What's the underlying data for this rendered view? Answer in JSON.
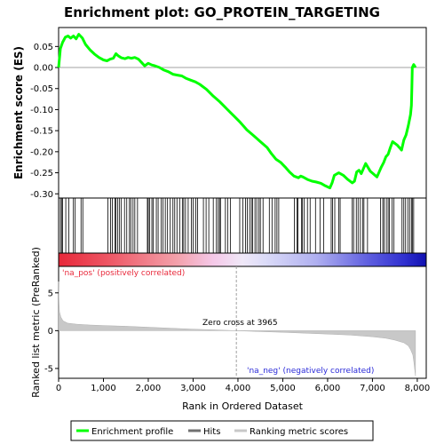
{
  "chart_data": {
    "type": "line",
    "title": "Enrichment plot: GO_PROTEIN_TARGETING",
    "top_panel": {
      "ylabel": "Enrichment score (ES)",
      "ylim": [
        -0.31,
        0.095
      ],
      "yticks": [
        "0.05",
        "0.00",
        "-0.05",
        "-0.10",
        "-0.15",
        "-0.20",
        "-0.25",
        "-0.30"
      ],
      "ytick_values": [
        0.05,
        0.0,
        -0.05,
        -0.1,
        -0.15,
        -0.2,
        -0.25,
        -0.3
      ],
      "grid": false,
      "series": [
        {
          "name": "Enrichment profile",
          "color": "#00ff00",
          "x": [
            0,
            40,
            90,
            150,
            210,
            270,
            330,
            390,
            450,
            530,
            600,
            700,
            800,
            900,
            1000,
            1080,
            1150,
            1220,
            1280,
            1330,
            1400,
            1480,
            1550,
            1620,
            1700,
            1780,
            1850,
            1920,
            2000,
            2080,
            2150,
            2250,
            2350,
            2450,
            2550,
            2650,
            2750,
            2850,
            2950,
            3050,
            3150,
            3300,
            3450,
            3600,
            3750,
            3900,
            4050,
            4200,
            4350,
            4500,
            4650,
            4750,
            4850,
            4950,
            5050,
            5150,
            5250,
            5350,
            5400,
            5450,
            5550,
            5650,
            5750,
            5850,
            5950,
            6050,
            6100,
            6150,
            6250,
            6350,
            6450,
            6550,
            6600,
            6650,
            6700,
            6750,
            6800,
            6850,
            6950,
            7100,
            7200,
            7250,
            7300,
            7350,
            7400,
            7450,
            7550,
            7650,
            7700,
            7750,
            7800,
            7850,
            7870,
            7880,
            7890,
            7920,
            7960
          ],
          "y": [
            0.0,
            0.045,
            0.06,
            0.072,
            0.075,
            0.07,
            0.075,
            0.068,
            0.079,
            0.07,
            0.055,
            0.042,
            0.032,
            0.024,
            0.018,
            0.016,
            0.02,
            0.022,
            0.033,
            0.028,
            0.023,
            0.021,
            0.024,
            0.022,
            0.024,
            0.02,
            0.012,
            0.004,
            0.01,
            0.006,
            0.004,
            0.0,
            -0.006,
            -0.01,
            -0.016,
            -0.018,
            -0.02,
            -0.026,
            -0.03,
            -0.034,
            -0.04,
            -0.052,
            -0.068,
            -0.082,
            -0.098,
            -0.114,
            -0.13,
            -0.148,
            -0.162,
            -0.176,
            -0.19,
            -0.205,
            -0.218,
            -0.225,
            -0.236,
            -0.248,
            -0.258,
            -0.262,
            -0.258,
            -0.26,
            -0.266,
            -0.27,
            -0.272,
            -0.275,
            -0.281,
            -0.286,
            -0.274,
            -0.256,
            -0.25,
            -0.256,
            -0.266,
            -0.274,
            -0.27,
            -0.248,
            -0.244,
            -0.252,
            -0.24,
            -0.228,
            -0.246,
            -0.26,
            -0.236,
            -0.226,
            -0.212,
            -0.206,
            -0.19,
            -0.176,
            -0.184,
            -0.196,
            -0.172,
            -0.16,
            -0.138,
            -0.112,
            -0.09,
            -0.05,
            0.0,
            0.007,
            0.0
          ]
        }
      ],
      "hits": [
        40,
        65,
        90,
        160,
        230,
        330,
        370,
        500,
        540,
        1100,
        1160,
        1200,
        1260,
        1280,
        1320,
        1360,
        1400,
        1470,
        1520,
        1580,
        1610,
        1660,
        1700,
        1760,
        1980,
        2000,
        2030,
        2080,
        2110,
        2180,
        2220,
        2290,
        2330,
        2380,
        2430,
        2490,
        2550,
        2590,
        2640,
        2700,
        2760,
        2790,
        2830,
        2890,
        2960,
        3000,
        3060,
        3100,
        3230,
        3290,
        3350,
        3450,
        3520,
        3560,
        3590,
        3610,
        3720,
        3770,
        3830,
        4040,
        4110,
        4170,
        4210,
        4260,
        4300,
        4330,
        4380,
        4420,
        4470,
        4500,
        4560,
        4700,
        4760,
        4830,
        4870,
        4910,
        5260,
        5320,
        5340,
        5420,
        5440,
        5480,
        5550,
        5610,
        5730,
        5830,
        5910,
        6080,
        6110,
        6160,
        6250,
        6280,
        6550,
        6580,
        6640,
        6680,
        6730,
        6780,
        6810,
        6890,
        7180,
        7230,
        7260,
        7310,
        7350,
        7380,
        7440,
        7480,
        7660,
        7700,
        7740,
        7790,
        7830,
        7870,
        7890,
        7920
      ]
    },
    "middle_panel": {
      "pos_label": "'na_pos' (positively correlated)",
      "neg_label": "'na_neg' (negatively correlated)",
      "pos_color": "#e8283a",
      "neg_color": "#2a2ad8"
    },
    "bottom_panel": {
      "ylabel": "Ranked list metric (PreRanked)",
      "xlabel": "Rank in Ordered Dataset",
      "ylim": [
        -6.3,
        8.5
      ],
      "yticks": [
        "5",
        "0",
        "-5"
      ],
      "ytick_values": [
        5,
        0,
        -5
      ],
      "xlim": [
        0,
        8200
      ],
      "xticks": [
        "0",
        "1,000",
        "2,000",
        "3,000",
        "4,000",
        "5,000",
        "6,000",
        "7,000",
        "8,000"
      ],
      "xtick_values": [
        0,
        1000,
        2000,
        3000,
        4000,
        5000,
        6000,
        7000,
        8000
      ],
      "zero_cross_label": "Zero cross at 3965",
      "zero_cross": 3965,
      "series": [
        {
          "name": "Ranking metric scores",
          "color": "#c8c8c8",
          "x": [
            0,
            5,
            20,
            50,
            100,
            200,
            400,
            700,
            1000,
            1500,
            2000,
            2500,
            3000,
            3500,
            3965,
            4500,
            5000,
            5500,
            6000,
            6500,
            7000,
            7300,
            7500,
            7700,
            7800,
            7850,
            7900,
            7920,
            7940,
            7960
          ],
          "y": [
            6.5,
            4.2,
            2.5,
            1.8,
            1.3,
            1.0,
            0.85,
            0.75,
            0.68,
            0.58,
            0.45,
            0.32,
            0.2,
            0.1,
            0.0,
            -0.12,
            -0.22,
            -0.33,
            -0.45,
            -0.58,
            -0.8,
            -1.0,
            -1.25,
            -1.6,
            -2.0,
            -2.5,
            -3.2,
            -4.0,
            -5.0,
            -6.0
          ]
        }
      ]
    },
    "legend": {
      "placement": "bottom",
      "items": [
        {
          "label": "Enrichment profile",
          "color": "#00ff00"
        },
        {
          "label": "Hits",
          "color": "#707070"
        },
        {
          "label": "Ranking metric scores",
          "color": "#c8c8c8"
        }
      ]
    }
  }
}
